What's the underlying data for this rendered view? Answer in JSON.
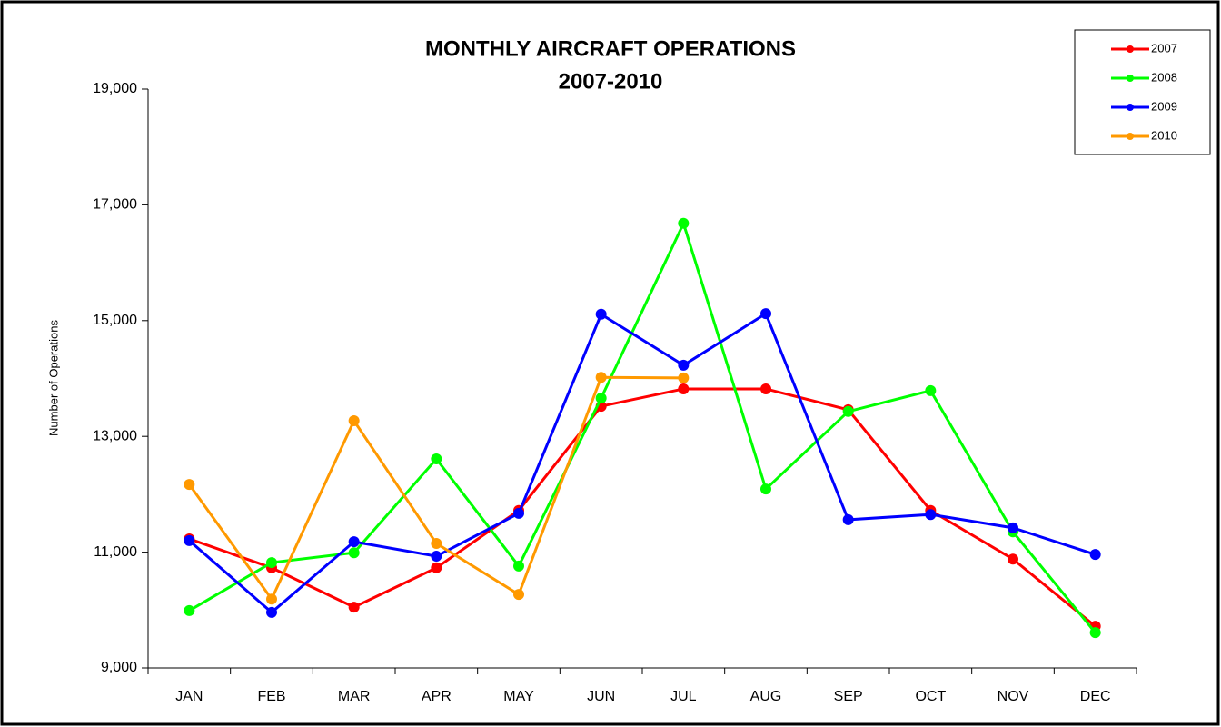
{
  "chart_data": {
    "type": "line",
    "title": "MONTHLY AIRCRAFT OPERATIONS",
    "subtitle": "2007-2010",
    "y_label": "Number of Operations",
    "categories": [
      "JAN",
      "FEB",
      "MAR",
      "APR",
      "MAY",
      "JUN",
      "JUL",
      "AUG",
      "SEP",
      "OCT",
      "NOV",
      "DEC"
    ],
    "series": [
      {
        "name": "2007",
        "color": "#ff0000",
        "values": [
          11230,
          10730,
          10050,
          10730,
          11720,
          13520,
          13820,
          13820,
          13460,
          11720,
          10880,
          9720
        ]
      },
      {
        "name": "2008",
        "color": "#00ff00",
        "values": [
          9990,
          10820,
          10990,
          12610,
          10760,
          13660,
          16680,
          12090,
          13430,
          13790,
          11350,
          9610
        ]
      },
      {
        "name": "2009",
        "color": "#0000ff",
        "values": [
          11200,
          9960,
          11180,
          10930,
          11670,
          15110,
          14230,
          15120,
          11560,
          11650,
          11420,
          10960
        ]
      },
      {
        "name": "2010",
        "color": "#ff9900",
        "values": [
          12170,
          10190,
          13270,
          11150,
          10270,
          14020,
          14010,
          null,
          null,
          null,
          null,
          null
        ]
      }
    ],
    "ylim": [
      9000,
      19000
    ],
    "yticks": [
      {
        "value": 9000,
        "label": "9,000"
      },
      {
        "value": 11000,
        "label": "11,000"
      },
      {
        "value": 13000,
        "label": "13,000"
      },
      {
        "value": 15000,
        "label": "15,000"
      },
      {
        "value": 17000,
        "label": "17,000"
      },
      {
        "value": 19000,
        "label": "19,000"
      }
    ],
    "grid": false,
    "legend": "top-right"
  }
}
